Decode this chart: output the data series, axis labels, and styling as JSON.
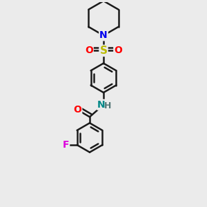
{
  "bg_color": "#ebebeb",
  "bond_color": "#1a1a1a",
  "bond_width": 1.8,
  "atom_colors": {
    "N_pip": "#0000ee",
    "N_amide": "#008888",
    "O": "#ff0000",
    "S": "#bbbb00",
    "F": "#dd00dd",
    "C": "#1a1a1a"
  },
  "font_size": 10,
  "fig_size": [
    3.0,
    3.0
  ],
  "dpi": 100,
  "xlim": [
    0,
    10
  ],
  "ylim": [
    0,
    10
  ]
}
